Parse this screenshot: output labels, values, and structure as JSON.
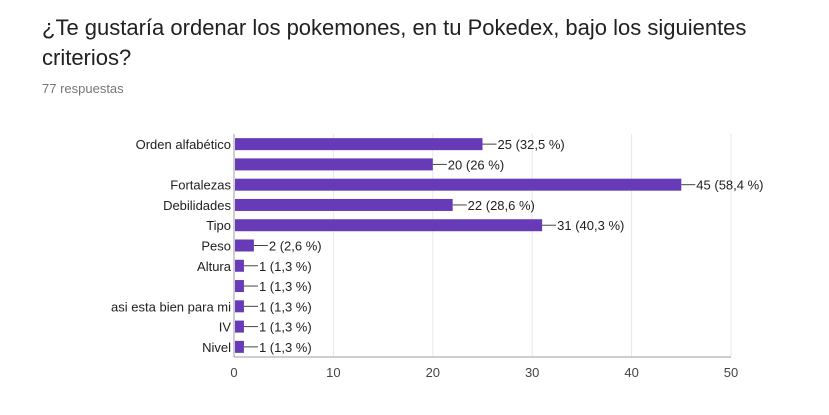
{
  "question": {
    "title": "¿Te gustaría ordenar los pokemones, en tu Pokedex, bajo los siguientes criterios?",
    "responses": "77 respuestas"
  },
  "colors": {
    "bar": "#673ab7",
    "grid": "#e8e8e8",
    "axis": "#9e9e9e",
    "text": "#212121",
    "tick": "#444444"
  },
  "chart_data": {
    "type": "bar",
    "orientation": "horizontal",
    "categories": [
      "Orden alfabético",
      "",
      "Fortalezas",
      "Debilidades",
      "Tipo",
      "Peso",
      "Altura",
      "",
      "asi esta bien para mi",
      "IV",
      "Nivel"
    ],
    "values": [
      25,
      20,
      45,
      22,
      31,
      2,
      1,
      1,
      1,
      1,
      1
    ],
    "value_labels": [
      "25 (32,5 %)",
      "20 (26 %)",
      "45 (58,4 %)",
      "22 (28,6 %)",
      "31 (40,3 %)",
      "2 (2,6 %)",
      "1 (1,3 %)",
      "1 (1,3 %)",
      "1 (1,3 %)",
      "1 (1,3 %)",
      "1 (1,3 %)"
    ],
    "xlim": [
      0,
      50
    ],
    "xticks": [
      "0",
      "10",
      "20",
      "30",
      "40",
      "50"
    ],
    "grid": true
  }
}
